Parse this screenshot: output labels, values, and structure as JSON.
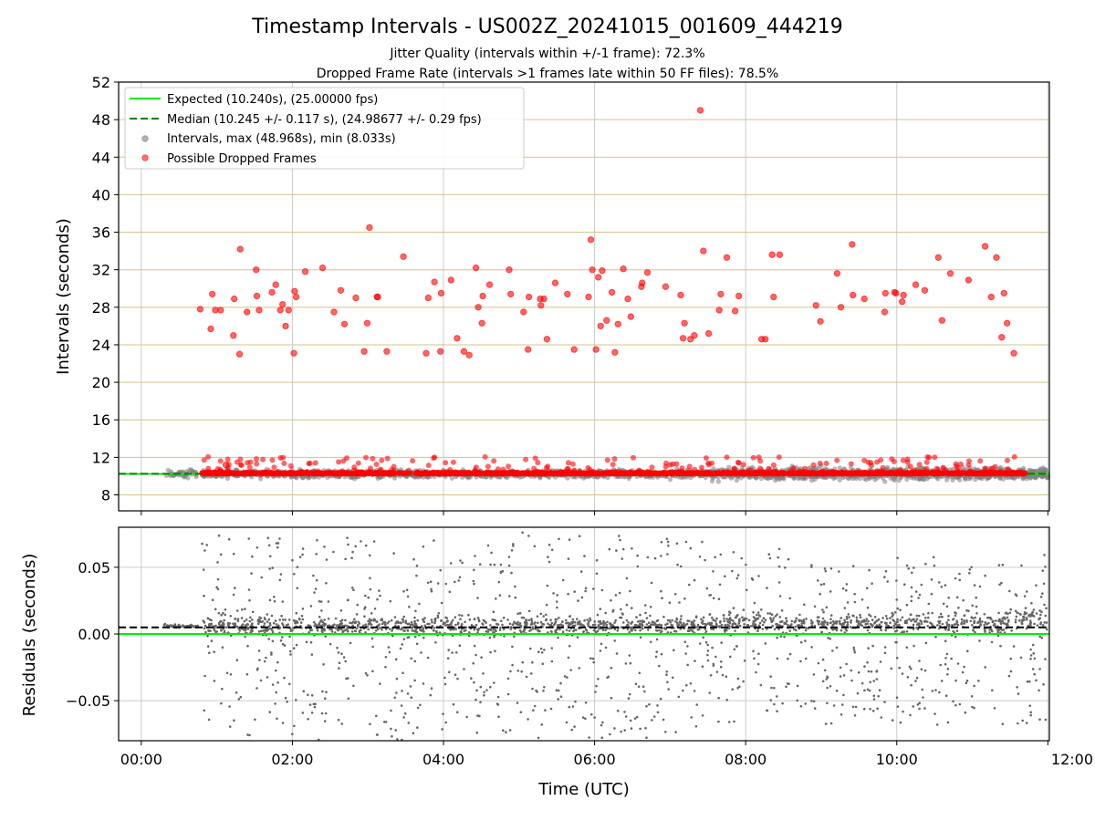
{
  "colors": {
    "expected_line": "#00ee00",
    "median_line": "#008000",
    "intervals_points": "#808080",
    "dropped_points": "#ff0000",
    "horizontal_grid": "#d4c38b",
    "vertical_grid": "#cccccc"
  },
  "chart_data": [
    {
      "type": "scatter",
      "title": "Timestamp Intervals - US002Z_20241015_001609_444219",
      "subtitle_1": "Jitter Quality (intervals within +/-1 frame): 72.3%",
      "subtitle_2": "Dropped Frame Rate (intervals >1 frames late within 50 FF files): 78.5%",
      "ylabel": "Intervals (seconds)",
      "ylim": [
        6.3,
        52
      ],
      "y_ticks": [
        "8",
        "12",
        "16",
        "20",
        "24",
        "28",
        "32",
        "36",
        "40",
        "44",
        "48",
        "52"
      ],
      "x_range_hours": [
        -0.3,
        12.02
      ],
      "grid": true,
      "legend_position": "top-left",
      "legend": [
        "Expected (10.240s), (25.00000 fps)",
        "Median (10.245 +/- 0.117 s), (24.98677 +/- 0.29 fps)",
        "Intervals, max (48.968s), min (8.033s)",
        "Possible Dropped Frames"
      ],
      "expected_interval": 10.24,
      "median_interval": 10.245,
      "intervals_max": 48.968,
      "intervals_min": 8.033,
      "dropped_frames_outliers": [
        [
          0.78,
          27.8
        ],
        [
          0.92,
          25.7
        ],
        [
          0.94,
          29.4
        ],
        [
          0.98,
          27.7
        ],
        [
          1.05,
          27.7
        ],
        [
          1.12,
          11.2
        ],
        [
          1.22,
          25.0
        ],
        [
          1.23,
          28.9
        ],
        [
          1.3,
          23.0
        ],
        [
          1.31,
          34.2
        ],
        [
          1.4,
          27.5
        ],
        [
          1.52,
          32.0
        ],
        [
          1.53,
          29.2
        ],
        [
          1.56,
          27.7
        ],
        [
          1.73,
          29.6
        ],
        [
          1.78,
          30.4
        ],
        [
          1.84,
          27.7
        ],
        [
          1.87,
          28.3
        ],
        [
          1.91,
          26.0
        ],
        [
          1.95,
          27.7
        ],
        [
          2.02,
          23.1
        ],
        [
          2.03,
          29.7
        ],
        [
          2.05,
          29.1
        ],
        [
          2.17,
          31.8
        ],
        [
          2.4,
          32.2
        ],
        [
          2.55,
          27.5
        ],
        [
          2.64,
          29.8
        ],
        [
          2.69,
          26.2
        ],
        [
          2.84,
          29.0
        ],
        [
          2.95,
          23.3
        ],
        [
          2.99,
          26.3
        ],
        [
          3.02,
          36.5
        ],
        [
          3.12,
          29.1
        ],
        [
          3.13,
          29.1
        ],
        [
          3.25,
          23.3
        ],
        [
          3.47,
          33.4
        ],
        [
          3.77,
          23.1
        ],
        [
          3.8,
          29.0
        ],
        [
          3.88,
          30.7
        ],
        [
          3.96,
          23.3
        ],
        [
          3.97,
          29.5
        ],
        [
          4.1,
          30.9
        ],
        [
          4.18,
          24.7
        ],
        [
          4.27,
          23.3
        ],
        [
          4.34,
          22.9
        ],
        [
          4.43,
          32.2
        ],
        [
          4.46,
          28.0
        ],
        [
          4.51,
          26.3
        ],
        [
          4.52,
          29.2
        ],
        [
          4.61,
          30.4
        ],
        [
          4.87,
          32.0
        ],
        [
          4.89,
          29.4
        ],
        [
          5.06,
          27.5
        ],
        [
          5.12,
          23.5
        ],
        [
          5.13,
          29.1
        ],
        [
          5.28,
          28.9
        ],
        [
          5.29,
          28.2
        ],
        [
          5.33,
          28.9
        ],
        [
          5.37,
          24.6
        ],
        [
          5.48,
          30.6
        ],
        [
          5.64,
          29.4
        ],
        [
          5.73,
          23.5
        ],
        [
          5.92,
          29.1
        ],
        [
          5.95,
          35.2
        ],
        [
          5.97,
          32.0
        ],
        [
          6.02,
          23.5
        ],
        [
          6.05,
          31.2
        ],
        [
          6.08,
          26.0
        ],
        [
          6.1,
          31.9
        ],
        [
          6.16,
          26.6
        ],
        [
          6.23,
          29.6
        ],
        [
          6.27,
          23.2
        ],
        [
          6.31,
          26.2
        ],
        [
          6.38,
          32.1
        ],
        [
          6.44,
          28.9
        ],
        [
          6.48,
          27.0
        ],
        [
          6.62,
          30.2
        ],
        [
          6.63,
          30.6
        ],
        [
          6.7,
          31.7
        ],
        [
          6.94,
          30.2
        ],
        [
          7.14,
          29.3
        ],
        [
          7.17,
          24.7
        ],
        [
          7.19,
          26.3
        ],
        [
          7.27,
          24.6
        ],
        [
          7.32,
          25.0
        ],
        [
          7.4,
          49.0
        ],
        [
          7.44,
          34.0
        ],
        [
          7.51,
          25.2
        ],
        [
          7.65,
          27.7
        ],
        [
          7.67,
          29.4
        ],
        [
          7.75,
          33.3
        ],
        [
          7.86,
          27.6
        ],
        [
          7.91,
          29.2
        ],
        [
          8.21,
          24.6
        ],
        [
          8.26,
          24.6
        ],
        [
          8.35,
          33.6
        ],
        [
          8.37,
          29.1
        ],
        [
          8.45,
          33.6
        ],
        [
          8.93,
          28.2
        ],
        [
          8.99,
          26.5
        ],
        [
          9.21,
          31.6
        ],
        [
          9.26,
          28.0
        ],
        [
          9.41,
          34.7
        ],
        [
          9.42,
          29.3
        ],
        [
          9.57,
          28.9
        ],
        [
          9.84,
          27.5
        ],
        [
          9.85,
          29.5
        ],
        [
          9.97,
          29.6
        ],
        [
          9.99,
          29.5
        ],
        [
          10.07,
          28.6
        ],
        [
          10.09,
          29.3
        ],
        [
          10.25,
          30.4
        ],
        [
          10.37,
          29.8
        ],
        [
          10.55,
          33.3
        ],
        [
          10.6,
          26.6
        ],
        [
          10.71,
          31.6
        ],
        [
          10.95,
          30.9
        ],
        [
          11.17,
          34.5
        ],
        [
          11.25,
          29.1
        ],
        [
          11.32,
          33.3
        ],
        [
          11.39,
          24.8
        ],
        [
          11.42,
          29.5
        ],
        [
          11.46,
          26.3
        ],
        [
          11.55,
          23.1
        ]
      ]
    },
    {
      "type": "scatter",
      "xlabel": "Time (UTC)",
      "ylabel": "Residuals (seconds)",
      "ylim": [
        -0.08,
        0.08
      ],
      "y_ticks": [
        "0.05",
        "0.00",
        "−0.05"
      ],
      "x_ticks": [
        "00:00",
        "02:00",
        "04:00",
        "06:00",
        "08:00",
        "10:00",
        "12:00"
      ],
      "x_range_hours": [
        -0.3,
        12.02
      ],
      "grid": true,
      "expected_residual": 0.0,
      "median_residual": 0.005
    }
  ]
}
